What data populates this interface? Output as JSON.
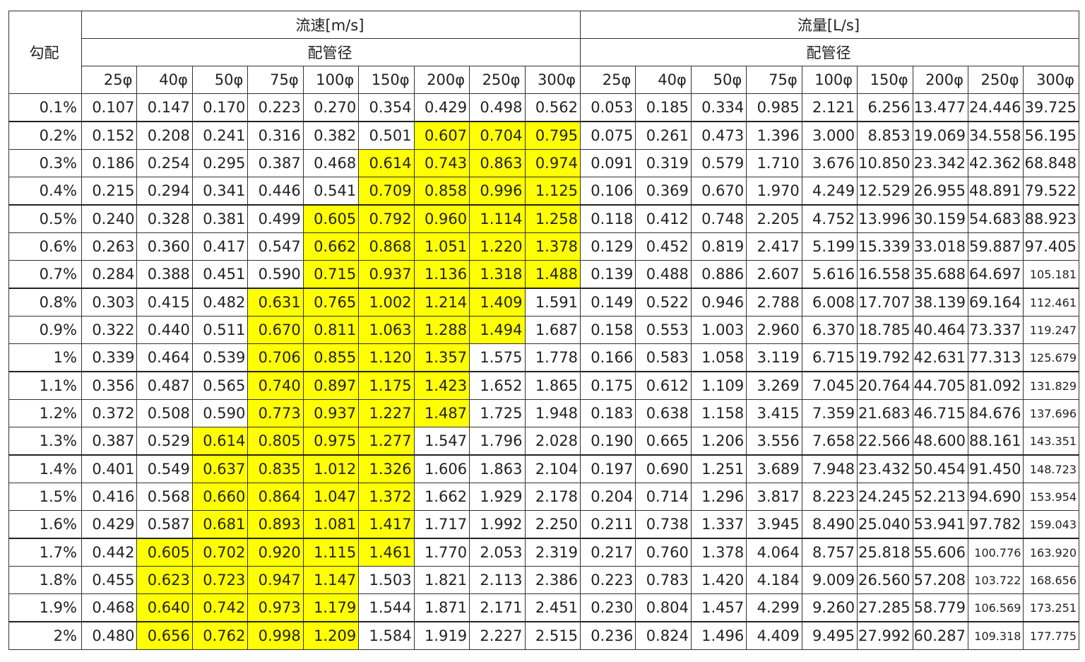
{
  "header": {
    "grade_label": "勾配",
    "velocity_label": "流速[m/s]",
    "flow_label": "流量[L/s]",
    "pipe_diameter_label": "配管径",
    "diameters": [
      "25φ",
      "40φ",
      "50φ",
      "75φ",
      "100φ",
      "150φ",
      "200φ",
      "250φ",
      "300φ"
    ]
  },
  "highlight_color": "#ffff00",
  "rows": [
    {
      "grade": "0.1%",
      "velocity": [
        "0.107",
        "0.147",
        "0.170",
        "0.223",
        "0.270",
        "0.354",
        "0.429",
        "0.498",
        "0.562"
      ],
      "flow": [
        "0.053",
        "0.185",
        "0.334",
        "0.985",
        "2.121",
        "6.256",
        "13.477",
        "24.446",
        "39.725"
      ]
    },
    {
      "grade": "0.2%",
      "velocity": [
        "0.152",
        "0.208",
        "0.241",
        "0.316",
        "0.382",
        "0.501",
        "0.607",
        "0.704",
        "0.795"
      ],
      "flow": [
        "0.075",
        "0.261",
        "0.473",
        "1.396",
        "3.000",
        "8.853",
        "19.069",
        "34.558",
        "56.195"
      ]
    },
    {
      "grade": "0.3%",
      "velocity": [
        "0.186",
        "0.254",
        "0.295",
        "0.387",
        "0.468",
        "0.614",
        "0.743",
        "0.863",
        "0.974"
      ],
      "flow": [
        "0.091",
        "0.319",
        "0.579",
        "1.710",
        "3.676",
        "10.850",
        "23.342",
        "42.362",
        "68.848"
      ]
    },
    {
      "grade": "0.4%",
      "velocity": [
        "0.215",
        "0.294",
        "0.341",
        "0.446",
        "0.541",
        "0.709",
        "0.858",
        "0.996",
        "1.125"
      ],
      "flow": [
        "0.106",
        "0.369",
        "0.670",
        "1.970",
        "4.249",
        "12.529",
        "26.955",
        "48.891",
        "79.522"
      ]
    },
    {
      "grade": "0.5%",
      "velocity": [
        "0.240",
        "0.328",
        "0.381",
        "0.499",
        "0.605",
        "0.792",
        "0.960",
        "1.114",
        "1.258"
      ],
      "flow": [
        "0.118",
        "0.412",
        "0.748",
        "2.205",
        "4.752",
        "13.996",
        "30.159",
        "54.683",
        "88.923"
      ]
    },
    {
      "grade": "0.6%",
      "velocity": [
        "0.263",
        "0.360",
        "0.417",
        "0.547",
        "0.662",
        "0.868",
        "1.051",
        "1.220",
        "1.378"
      ],
      "flow": [
        "0.129",
        "0.452",
        "0.819",
        "2.417",
        "5.199",
        "15.339",
        "33.018",
        "59.887",
        "97.405"
      ]
    },
    {
      "grade": "0.7%",
      "velocity": [
        "0.284",
        "0.388",
        "0.451",
        "0.590",
        "0.715",
        "0.937",
        "1.136",
        "1.318",
        "1.488"
      ],
      "flow": [
        "0.139",
        "0.488",
        "0.886",
        "2.607",
        "5.616",
        "16.558",
        "35.688",
        "64.697",
        "105.181"
      ]
    },
    {
      "grade": "0.8%",
      "velocity": [
        "0.303",
        "0.415",
        "0.482",
        "0.631",
        "0.765",
        "1.002",
        "1.214",
        "1.409",
        "1.591"
      ],
      "flow": [
        "0.149",
        "0.522",
        "0.946",
        "2.788",
        "6.008",
        "17.707",
        "38.139",
        "69.164",
        "112.461"
      ]
    },
    {
      "grade": "0.9%",
      "velocity": [
        "0.322",
        "0.440",
        "0.511",
        "0.670",
        "0.811",
        "1.063",
        "1.288",
        "1.494",
        "1.687"
      ],
      "flow": [
        "0.158",
        "0.553",
        "1.003",
        "2.960",
        "6.370",
        "18.785",
        "40.464",
        "73.337",
        "119.247"
      ]
    },
    {
      "grade": "1%",
      "velocity": [
        "0.339",
        "0.464",
        "0.539",
        "0.706",
        "0.855",
        "1.120",
        "1.357",
        "1.575",
        "1.778"
      ],
      "flow": [
        "0.166",
        "0.583",
        "1.058",
        "3.119",
        "6.715",
        "19.792",
        "42.631",
        "77.313",
        "125.679"
      ]
    },
    {
      "grade": "1.1%",
      "velocity": [
        "0.356",
        "0.487",
        "0.565",
        "0.740",
        "0.897",
        "1.175",
        "1.423",
        "1.652",
        "1.865"
      ],
      "flow": [
        "0.175",
        "0.612",
        "1.109",
        "3.269",
        "7.045",
        "20.764",
        "44.705",
        "81.092",
        "131.829"
      ]
    },
    {
      "grade": "1.2%",
      "velocity": [
        "0.372",
        "0.508",
        "0.590",
        "0.773",
        "0.937",
        "1.227",
        "1.487",
        "1.725",
        "1.948"
      ],
      "flow": [
        "0.183",
        "0.638",
        "1.158",
        "3.415",
        "7.359",
        "21.683",
        "46.715",
        "84.676",
        "137.696"
      ]
    },
    {
      "grade": "1.3%",
      "velocity": [
        "0.387",
        "0.529",
        "0.614",
        "0.805",
        "0.975",
        "1.277",
        "1.547",
        "1.796",
        "2.028"
      ],
      "flow": [
        "0.190",
        "0.665",
        "1.206",
        "3.556",
        "7.658",
        "22.566",
        "48.600",
        "88.161",
        "143.351"
      ]
    },
    {
      "grade": "1.4%",
      "velocity": [
        "0.401",
        "0.549",
        "0.637",
        "0.835",
        "1.012",
        "1.326",
        "1.606",
        "1.863",
        "2.104"
      ],
      "flow": [
        "0.197",
        "0.690",
        "1.251",
        "3.689",
        "7.948",
        "23.432",
        "50.454",
        "91.450",
        "148.723"
      ]
    },
    {
      "grade": "1.5%",
      "velocity": [
        "0.416",
        "0.568",
        "0.660",
        "0.864",
        "1.047",
        "1.372",
        "1.662",
        "1.929",
        "2.178"
      ],
      "flow": [
        "0.204",
        "0.714",
        "1.296",
        "3.817",
        "8.223",
        "24.245",
        "52.213",
        "94.690",
        "153.954"
      ]
    },
    {
      "grade": "1.6%",
      "velocity": [
        "0.429",
        "0.587",
        "0.681",
        "0.893",
        "1.081",
        "1.417",
        "1.717",
        "1.992",
        "2.250"
      ],
      "flow": [
        "0.211",
        "0.738",
        "1.337",
        "3.945",
        "8.490",
        "25.040",
        "53.941",
        "97.782",
        "159.043"
      ]
    },
    {
      "grade": "1.7%",
      "velocity": [
        "0.442",
        "0.605",
        "0.702",
        "0.920",
        "1.115",
        "1.461",
        "1.770",
        "2.053",
        "2.319"
      ],
      "flow": [
        "0.217",
        "0.760",
        "1.378",
        "4.064",
        "8.757",
        "25.818",
        "55.606",
        "100.776",
        "163.920"
      ]
    },
    {
      "grade": "1.8%",
      "velocity": [
        "0.455",
        "0.623",
        "0.723",
        "0.947",
        "1.147",
        "1.503",
        "1.821",
        "2.113",
        "2.386"
      ],
      "flow": [
        "0.223",
        "0.783",
        "1.420",
        "4.184",
        "9.009",
        "26.560",
        "57.208",
        "103.722",
        "168.656"
      ]
    },
    {
      "grade": "1.9%",
      "velocity": [
        "0.468",
        "0.640",
        "0.742",
        "0.973",
        "1.179",
        "1.544",
        "1.871",
        "2.171",
        "2.451"
      ],
      "flow": [
        "0.230",
        "0.804",
        "1.457",
        "4.299",
        "9.260",
        "27.285",
        "58.779",
        "106.569",
        "173.251"
      ]
    },
    {
      "grade": "2%",
      "velocity": [
        "0.480",
        "0.656",
        "0.762",
        "0.998",
        "1.209",
        "1.584",
        "1.919",
        "2.227",
        "2.515"
      ],
      "flow": [
        "0.236",
        "0.824",
        "1.496",
        "4.409",
        "9.495",
        "27.992",
        "60.287",
        "109.318",
        "177.775"
      ]
    }
  ]
}
